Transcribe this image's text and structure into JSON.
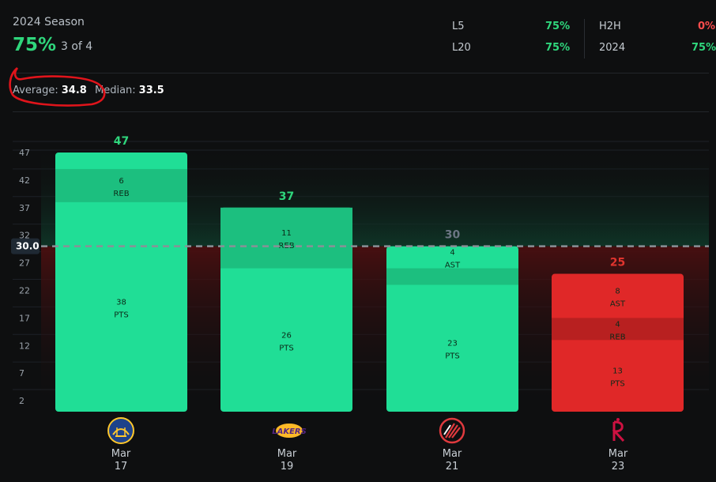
{
  "header": {
    "season_label": "2024 Season",
    "hit_rate": "75%",
    "hit_fraction": "3 of 4",
    "stats": [
      {
        "label": "L5",
        "value": "75%",
        "color": "#2fd67c"
      },
      {
        "label": "L20",
        "value": "75%",
        "color": "#2fd67c"
      },
      {
        "label": "H2H",
        "value": "0%",
        "color": "#ff4d4d"
      },
      {
        "label": "2024",
        "value": "75%",
        "color": "#2fd67c"
      }
    ]
  },
  "summary": {
    "average_label": "Average:",
    "average_value": "34.8",
    "median_label": "Median:",
    "median_value": "33.5"
  },
  "chart_data": {
    "type": "bar",
    "line": 30.0,
    "line_label": "30.0",
    "y_ticks": [
      2,
      7,
      12,
      17,
      22,
      27,
      32,
      37,
      42,
      47
    ],
    "ylim": [
      0,
      47
    ],
    "bars": [
      {
        "total": 47,
        "hit": true,
        "segments": [
          {
            "value": 38,
            "label": "PTS"
          },
          {
            "value": 6,
            "label": "REB"
          },
          {
            "value": 3,
            "label": ""
          }
        ]
      },
      {
        "total": 37,
        "hit": true,
        "segments": [
          {
            "value": 26,
            "label": "PTS"
          },
          {
            "value": 11,
            "label": "REB"
          }
        ]
      },
      {
        "total": 30,
        "hit": true,
        "segments": [
          {
            "value": 23,
            "label": "PTS"
          },
          {
            "value": 3,
            "label": ""
          },
          {
            "value": 4,
            "label": "AST"
          }
        ]
      },
      {
        "total": 25,
        "hit": false,
        "segments": [
          {
            "value": 13,
            "label": "PTS"
          },
          {
            "value": 4,
            "label": "REB"
          },
          {
            "value": 8,
            "label": "AST"
          }
        ]
      }
    ],
    "colors": {
      "hit": "#20de96",
      "hit_dark": "#1cbf7f",
      "miss": "#e02828",
      "miss_dark": "#b82020",
      "total_hit": "#2fd67c",
      "total_push": "#6b7583",
      "total_miss": "#e0342e"
    }
  },
  "games": [
    {
      "team_icon": "warriors-logo",
      "month": "Mar",
      "day": "17"
    },
    {
      "team_icon": "lakers-logo",
      "month": "Mar",
      "day": "19"
    },
    {
      "team_icon": "blazers-logo",
      "month": "Mar",
      "day": "21"
    },
    {
      "team_icon": "rockets-logo",
      "month": "Mar",
      "day": "23"
    }
  ]
}
